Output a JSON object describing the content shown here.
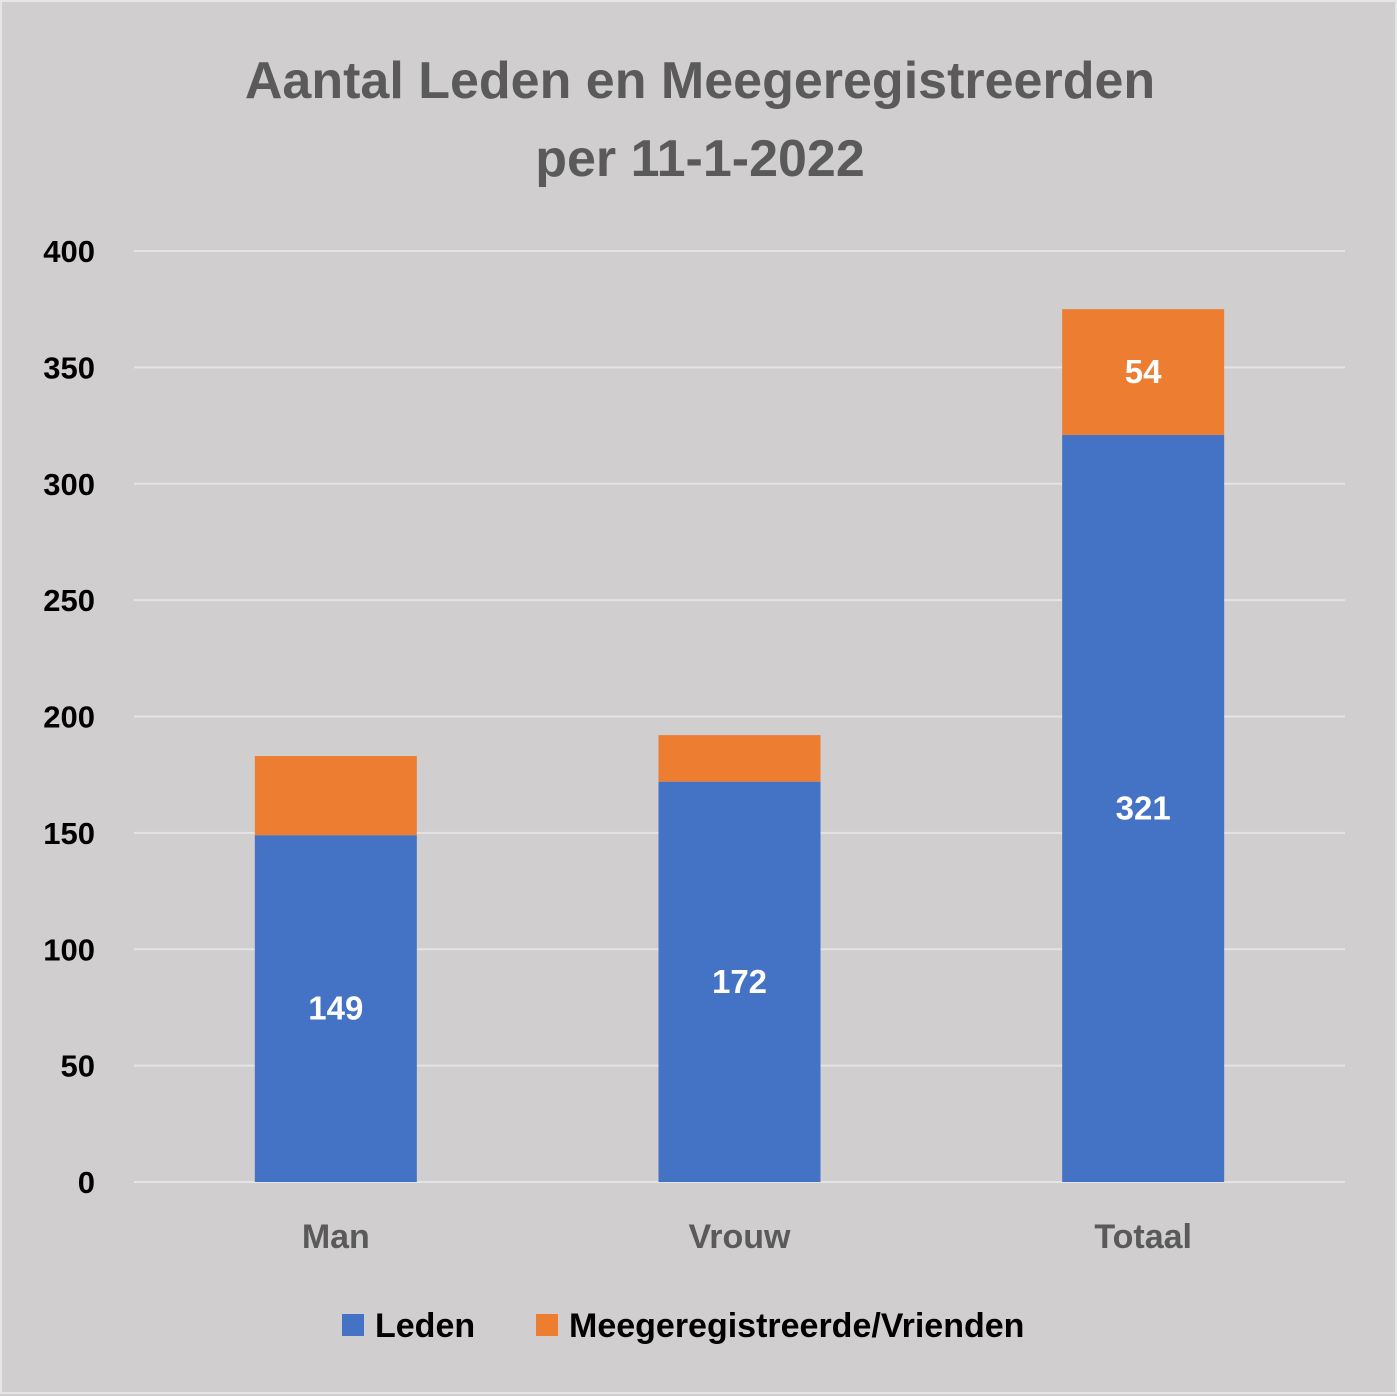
{
  "chart_data": {
    "type": "bar",
    "stacked": true,
    "title": [
      "Aantal Leden en Meegeregistreerden",
      "per 11-1-2022"
    ],
    "xlabel": "",
    "ylabel": "",
    "ylim": [
      0,
      400
    ],
    "yticks": [
      0,
      50,
      100,
      150,
      200,
      250,
      300,
      350,
      400
    ],
    "grid": true,
    "categories": [
      "Man",
      "Vrouw",
      "Totaal"
    ],
    "series": [
      {
        "name": "Leden",
        "color": "#4472c4",
        "values": [
          149,
          172,
          321
        ],
        "labels": [
          "149",
          "172",
          "321"
        ]
      },
      {
        "name": "Meegeregistreerde/Vrienden",
        "color": "#ed7d31",
        "values": [
          34,
          20,
          54
        ],
        "labels": [
          null,
          null,
          "54"
        ]
      }
    ],
    "legend": "bottom"
  }
}
